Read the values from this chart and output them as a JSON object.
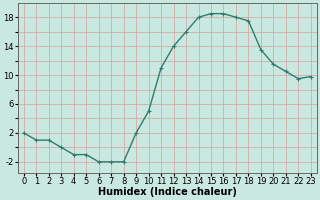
{
  "x": [
    0,
    1,
    2,
    3,
    4,
    5,
    6,
    7,
    8,
    9,
    10,
    11,
    12,
    13,
    14,
    15,
    16,
    17,
    18,
    19,
    20,
    21,
    22,
    23
  ],
  "y": [
    2,
    1,
    1,
    0,
    -1,
    -1,
    -2,
    -2,
    -2,
    2,
    5,
    11,
    14,
    16,
    18,
    18.5,
    18.5,
    18,
    17.5,
    13.5,
    11.5,
    10.5,
    9.5,
    9.8
  ],
  "line_color": "#2e7d6e",
  "marker": "+",
  "marker_size": 3,
  "bg_color": "#c9e8e0",
  "grid_color": "#d4a0a0",
  "xlabel": "Humidex (Indice chaleur)",
  "xlabel_fontsize": 7,
  "yticks": [
    -2,
    0,
    2,
    4,
    6,
    8,
    10,
    12,
    14,
    16,
    18
  ],
  "ytick_labels": [
    "-2",
    "",
    "2",
    "",
    "6",
    "",
    "10",
    "",
    "14",
    "",
    "18"
  ],
  "xtick_labels": [
    "0",
    "1",
    "2",
    "3",
    "4",
    "5",
    "6",
    "7",
    "8",
    "9",
    "10",
    "11",
    "12",
    "13",
    "14",
    "15",
    "16",
    "17",
    "18",
    "19",
    "20",
    "21",
    "22",
    "23"
  ],
  "ylim": [
    -3.5,
    20
  ],
  "xlim": [
    -0.5,
    23.5
  ],
  "tick_fontsize": 6,
  "line_width": 1.0
}
